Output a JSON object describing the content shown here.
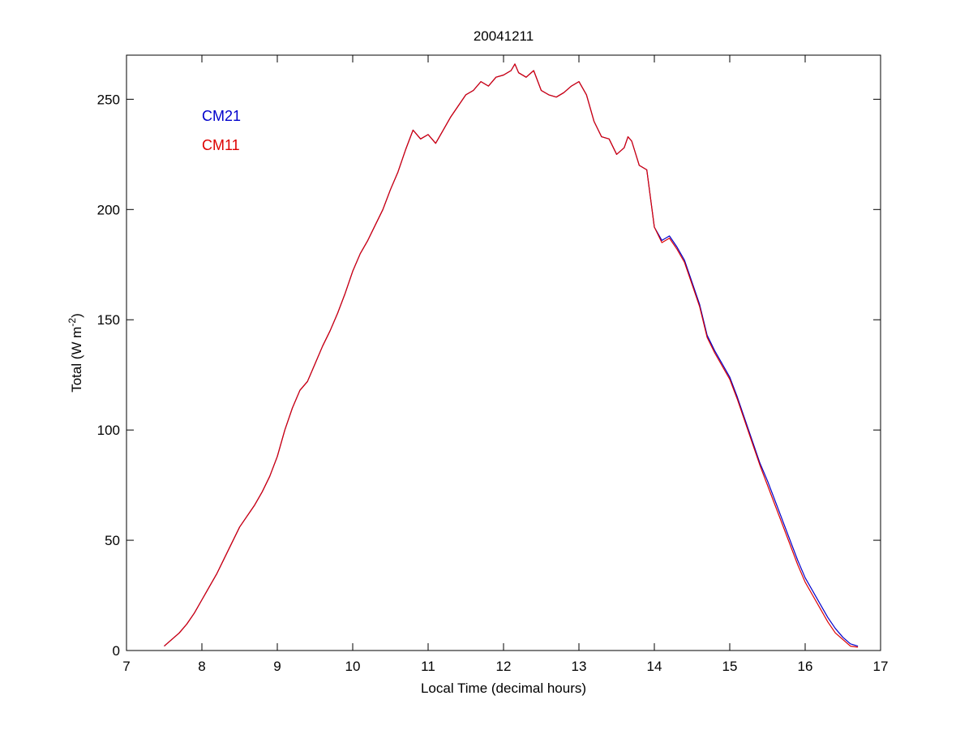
{
  "chart_data": {
    "type": "line",
    "title": "20041211",
    "xlabel": "Local Time (decimal hours)",
    "ylabel": {
      "prefix": "Total (W m",
      "superscript": "-2",
      "suffix": ")"
    },
    "xlim": [
      7,
      17
    ],
    "ylim": [
      0,
      270
    ],
    "xticks": [
      7,
      8,
      9,
      10,
      11,
      12,
      13,
      14,
      15,
      16,
      17
    ],
    "yticks": [
      0,
      50,
      100,
      150,
      200,
      250
    ],
    "grid": false,
    "legend": {
      "placement": "top-left"
    },
    "series": [
      {
        "name": "CM21",
        "color": "#0000cc",
        "x": [
          7.5,
          7.6,
          7.7,
          7.8,
          7.9,
          8.0,
          8.1,
          8.2,
          8.3,
          8.4,
          8.5,
          8.6,
          8.7,
          8.8,
          8.9,
          9.0,
          9.1,
          9.2,
          9.3,
          9.4,
          9.5,
          9.6,
          9.7,
          9.8,
          9.9,
          10.0,
          10.1,
          10.2,
          10.3,
          10.4,
          10.5,
          10.6,
          10.7,
          10.8,
          10.9,
          11.0,
          11.1,
          11.2,
          11.3,
          11.4,
          11.5,
          11.6,
          11.7,
          11.8,
          11.9,
          12.0,
          12.1,
          12.15,
          12.2,
          12.3,
          12.4,
          12.5,
          12.6,
          12.7,
          12.8,
          12.9,
          13.0,
          13.1,
          13.2,
          13.3,
          13.4,
          13.5,
          13.6,
          13.65,
          13.7,
          13.8,
          13.9,
          14.0,
          14.1,
          14.2,
          14.3,
          14.4,
          14.5,
          14.6,
          14.7,
          14.8,
          14.9,
          15.0,
          15.1,
          15.2,
          15.3,
          15.4,
          15.5,
          15.6,
          15.7,
          15.8,
          15.9,
          16.0,
          16.1,
          16.2,
          16.3,
          16.4,
          16.5,
          16.6,
          16.7
        ],
        "y": [
          2,
          5,
          8,
          12,
          17,
          23,
          29,
          35,
          42,
          49,
          56,
          61,
          66,
          72,
          79,
          88,
          100,
          110,
          118,
          122,
          130,
          138,
          145,
          153,
          162,
          172,
          180,
          186,
          193,
          200,
          209,
          217,
          227,
          236,
          232,
          234,
          230,
          236,
          242,
          247,
          252,
          254,
          258,
          256,
          260,
          261,
          263,
          266,
          262,
          260,
          263,
          254,
          252,
          251,
          253,
          256,
          258,
          252,
          240,
          233,
          232,
          225,
          228,
          233,
          231,
          220,
          218,
          192,
          186,
          188,
          183,
          177,
          167,
          157,
          143,
          136,
          130,
          124,
          115,
          105,
          95,
          85,
          77,
          68,
          59,
          50,
          41,
          33,
          27,
          21,
          15,
          10,
          6,
          3,
          2
        ]
      },
      {
        "name": "CM11",
        "color": "#dd0000",
        "x": [
          7.5,
          7.6,
          7.7,
          7.8,
          7.9,
          8.0,
          8.1,
          8.2,
          8.3,
          8.4,
          8.5,
          8.6,
          8.7,
          8.8,
          8.9,
          9.0,
          9.1,
          9.2,
          9.3,
          9.4,
          9.5,
          9.6,
          9.7,
          9.8,
          9.9,
          10.0,
          10.1,
          10.2,
          10.3,
          10.4,
          10.5,
          10.6,
          10.7,
          10.8,
          10.9,
          11.0,
          11.1,
          11.2,
          11.3,
          11.4,
          11.5,
          11.6,
          11.7,
          11.8,
          11.9,
          12.0,
          12.1,
          12.15,
          12.2,
          12.3,
          12.4,
          12.5,
          12.6,
          12.7,
          12.8,
          12.9,
          13.0,
          13.1,
          13.2,
          13.3,
          13.4,
          13.5,
          13.6,
          13.65,
          13.7,
          13.8,
          13.9,
          14.0,
          14.1,
          14.2,
          14.3,
          14.4,
          14.5,
          14.6,
          14.7,
          14.8,
          14.9,
          15.0,
          15.1,
          15.2,
          15.3,
          15.4,
          15.5,
          15.6,
          15.7,
          15.8,
          15.9,
          16.0,
          16.1,
          16.2,
          16.3,
          16.4,
          16.5,
          16.6,
          16.7
        ],
        "y": [
          2,
          5,
          8,
          12,
          17,
          23,
          29,
          35,
          42,
          49,
          56,
          61,
          66,
          72,
          79,
          88,
          100,
          110,
          118,
          122,
          130,
          138,
          145,
          153,
          162,
          172,
          180,
          186,
          193,
          200,
          209,
          217,
          227,
          236,
          232,
          234,
          230,
          236,
          242,
          247,
          252,
          254,
          258,
          256,
          260,
          261,
          263,
          266,
          262,
          260,
          263,
          254,
          252,
          251,
          253,
          256,
          258,
          252,
          240,
          233,
          232,
          225,
          228,
          233,
          231,
          220,
          218,
          192,
          185,
          187,
          182,
          176,
          166,
          156,
          142,
          135,
          129,
          123,
          114,
          104,
          94,
          84,
          75,
          66,
          57,
          48,
          39,
          31,
          25,
          19,
          13,
          8,
          5,
          2,
          1.5
        ]
      }
    ]
  }
}
